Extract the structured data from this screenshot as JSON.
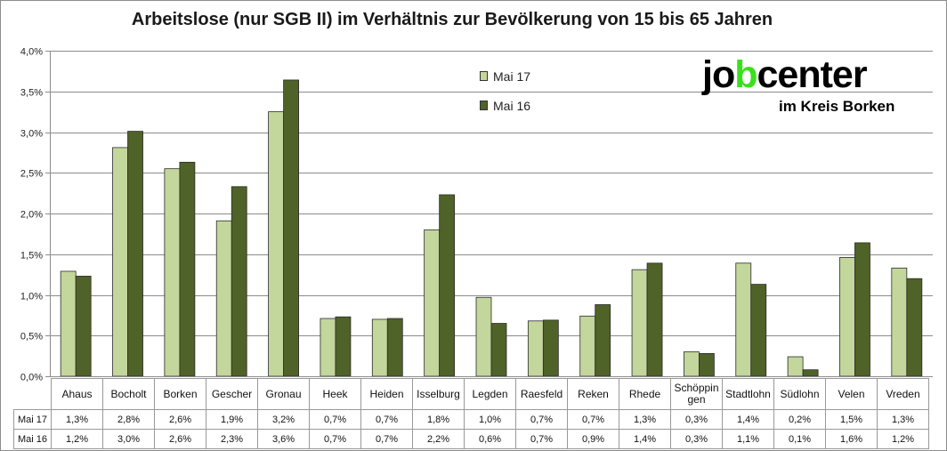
{
  "chart_data": {
    "type": "bar",
    "title": "Arbeitslose (nur SGB II) im Verhältnis zur Bevölkerung von 15 bis 65 Jahren",
    "categories": [
      "Ahaus",
      "Bocholt",
      "Borken",
      "Gescher",
      "Gronau",
      "Heek",
      "Heiden",
      "Isselburg",
      "Legden",
      "Raesfeld",
      "Reken",
      "Rhede",
      "Schöppingen",
      "Stadtlohn",
      "Südlohn",
      "Velen",
      "Vreden"
    ],
    "category_display": [
      "Ahaus",
      "Bocholt",
      "Borken",
      "Gescher",
      "Gronau",
      "Heek",
      "Heiden",
      "Isselburg",
      "Legden",
      "Raesfeld",
      "Reken",
      "Rhede",
      "Schöppin-gen",
      "Stadtlohn",
      "Südlohn",
      "Velen",
      "Vreden"
    ],
    "series": [
      {
        "name": "Mai 17",
        "color": "#c3d69b",
        "values": [
          1.29,
          2.81,
          2.55,
          1.91,
          3.25,
          0.71,
          0.7,
          1.8,
          0.97,
          0.68,
          0.74,
          1.31,
          0.3,
          1.39,
          0.24,
          1.46,
          1.33
        ],
        "labels": [
          "1,3%",
          "2,8%",
          "2,6%",
          "1,9%",
          "3,2%",
          "0,7%",
          "0,7%",
          "1,8%",
          "1,0%",
          "0,7%",
          "0,7%",
          "1,3%",
          "0,3%",
          "1,4%",
          "0,2%",
          "1,5%",
          "1,3%"
        ]
      },
      {
        "name": "Mai 16",
        "color": "#4f6228",
        "values": [
          1.23,
          3.01,
          2.63,
          2.33,
          3.64,
          0.73,
          0.71,
          2.23,
          0.65,
          0.69,
          0.88,
          1.39,
          0.28,
          1.13,
          0.08,
          1.64,
          1.2
        ],
        "labels": [
          "1,2%",
          "3,0%",
          "2,6%",
          "2,3%",
          "3,6%",
          "0,7%",
          "0,7%",
          "2,2%",
          "0,6%",
          "0,7%",
          "0,9%",
          "1,4%",
          "0,3%",
          "1,1%",
          "0,1%",
          "1,6%",
          "1,2%"
        ]
      }
    ],
    "ylim": [
      0,
      4.0
    ],
    "yticks": [
      0,
      0.5,
      1.0,
      1.5,
      2.0,
      2.5,
      3.0,
      3.5,
      4.0
    ],
    "ytick_labels": [
      "0,0%",
      "0,5%",
      "1,0%",
      "1,5%",
      "2,0%",
      "2,5%",
      "3,0%",
      "3,5%",
      "4,0%"
    ],
    "grid": true,
    "legend_position": "top-center",
    "data_table": true
  },
  "logo": {
    "word_prefix": "jo",
    "word_accent": "b",
    "word_suffix": "center",
    "subtitle": "im Kreis Borken",
    "accent_color": "#39e01b"
  }
}
